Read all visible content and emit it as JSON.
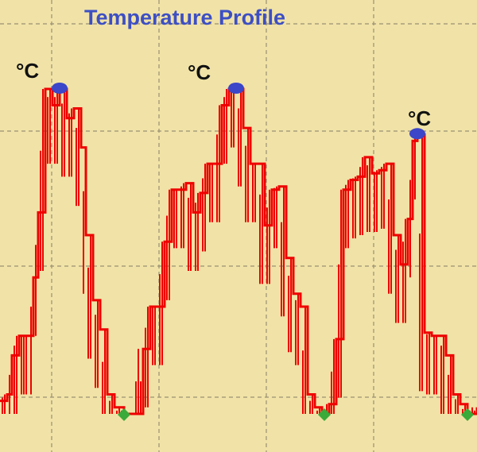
{
  "chart_data": {
    "type": "line",
    "title": "Temperature Profile",
    "xlabel": "",
    "ylabel": "",
    "unit": "°C",
    "grid": true,
    "legend": "none",
    "xlim": [
      0,
      100
    ],
    "ylim": [
      0,
      100
    ],
    "colors": {
      "background": "#f1e3a7",
      "line": "#ee0000",
      "peak_marker": "#3b46c9",
      "low_marker": "#3aaa3a",
      "title": "#3d4fc4",
      "grid": "#9a9072"
    },
    "series": [
      {
        "values": [
          [
            0,
            4
          ],
          [
            1.5,
            6
          ],
          [
            2.5,
            18
          ],
          [
            4,
            24
          ],
          [
            6,
            24
          ],
          [
            7,
            42
          ],
          [
            8,
            62
          ],
          [
            9.5,
            100
          ],
          [
            11,
            95
          ],
          [
            12.5,
            100
          ],
          [
            14,
            91
          ],
          [
            15.5,
            94
          ],
          [
            17,
            82
          ],
          [
            18,
            55
          ],
          [
            19.5,
            35
          ],
          [
            21,
            26
          ],
          [
            22.5,
            6
          ],
          [
            24,
            2
          ],
          [
            26,
            0
          ],
          [
            28,
            0
          ],
          [
            30,
            20
          ],
          [
            31.5,
            33
          ],
          [
            33,
            33
          ],
          [
            34.5,
            53
          ],
          [
            36,
            69
          ],
          [
            37.5,
            69
          ],
          [
            39,
            71
          ],
          [
            40.5,
            62
          ],
          [
            42,
            68
          ],
          [
            43.5,
            77
          ],
          [
            45,
            77
          ],
          [
            46.5,
            95
          ],
          [
            48,
            100
          ],
          [
            49.5,
            100
          ],
          [
            51,
            88
          ],
          [
            52.5,
            77
          ],
          [
            54,
            77
          ],
          [
            55.5,
            58
          ],
          [
            57,
            69
          ],
          [
            58.5,
            70
          ],
          [
            60,
            48
          ],
          [
            61.5,
            37
          ],
          [
            63,
            33
          ],
          [
            64.5,
            6
          ],
          [
            66,
            2
          ],
          [
            67.5,
            0
          ],
          [
            69,
            3
          ],
          [
            70.5,
            23
          ],
          [
            72,
            69
          ],
          [
            73.5,
            72
          ],
          [
            75,
            73
          ],
          [
            76.5,
            79
          ],
          [
            78,
            74
          ],
          [
            79.5,
            75
          ],
          [
            81,
            77
          ],
          [
            82.5,
            55
          ],
          [
            84,
            46
          ],
          [
            85.5,
            60
          ],
          [
            86.5,
            84
          ],
          [
            87.5,
            86
          ],
          [
            89,
            25
          ],
          [
            90.5,
            24
          ],
          [
            92,
            24
          ],
          [
            93.5,
            18
          ],
          [
            95,
            6
          ],
          [
            96.5,
            3
          ],
          [
            98,
            0
          ],
          [
            100,
            2
          ]
        ]
      }
    ],
    "peaks": [
      [
        12.5,
        100
      ],
      [
        49.5,
        100
      ],
      [
        87.5,
        86
      ]
    ],
    "lows": [
      [
        26,
        0
      ],
      [
        68,
        0
      ],
      [
        98,
        0
      ]
    ]
  }
}
